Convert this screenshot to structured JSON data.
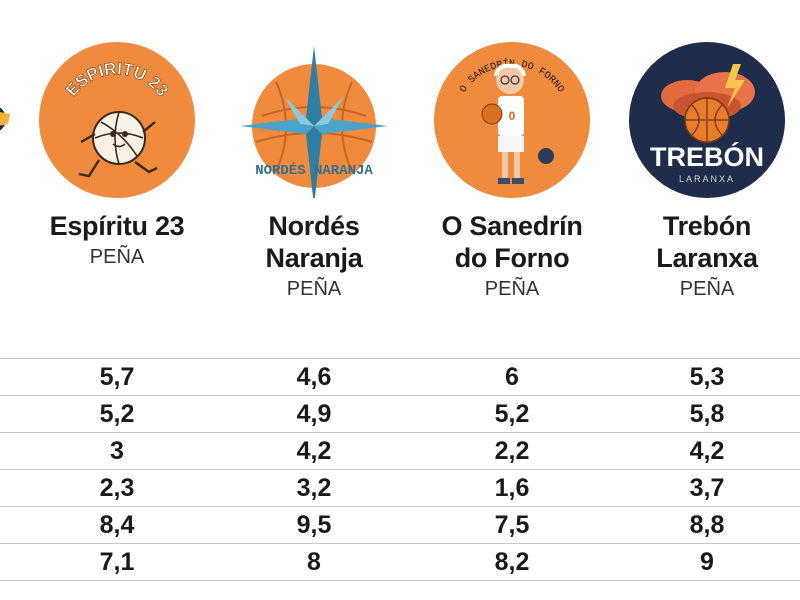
{
  "teams": [
    {
      "name": "Espíritu 23",
      "type": "PEÑA",
      "logo_text": "ESPIRITU 23",
      "logo_icon": "running-basketball-mascot-icon"
    },
    {
      "name": "Nordés\nNaranja",
      "type": "PEÑA",
      "logo_text": "NORDÉS NARANJA",
      "logo_icon": "compass-rose-basketball-icon"
    },
    {
      "name": "O Sanedrín\ndo Forno",
      "type": "PEÑA",
      "logo_text": "O SANEDRÍN DO FORNO",
      "logo_icon": "old-man-basketball-player-icon"
    },
    {
      "name": "Trebón\nLaranxa",
      "type": "PEÑA",
      "logo_text": "TREBÓN",
      "logo_subtext": "LARANXA",
      "logo_icon": "storm-cloud-basketball-icon"
    }
  ],
  "colors": {
    "orange": "#f08a3c",
    "navy": "#1f2d4a",
    "text": "#1a1a1a",
    "rule": "#c9c9c9"
  },
  "chart_data": {
    "type": "table",
    "columns": [
      "Espíritu 23",
      "Nordés Naranja",
      "O Sanedrín do Forno",
      "Trebón Laranxa"
    ],
    "rows": [
      [
        "5,7",
        "4,6",
        "6",
        "5,3"
      ],
      [
        "5,2",
        "4,9",
        "5,2",
        "5,8"
      ],
      [
        "3",
        "4,2",
        "2,2",
        "4,2"
      ],
      [
        "2,3",
        "3,2",
        "1,6",
        "3,7"
      ],
      [
        "8,4",
        "9,5",
        "7,5",
        "8,8"
      ],
      [
        "7,1",
        "8",
        "8,2",
        "9"
      ]
    ]
  }
}
